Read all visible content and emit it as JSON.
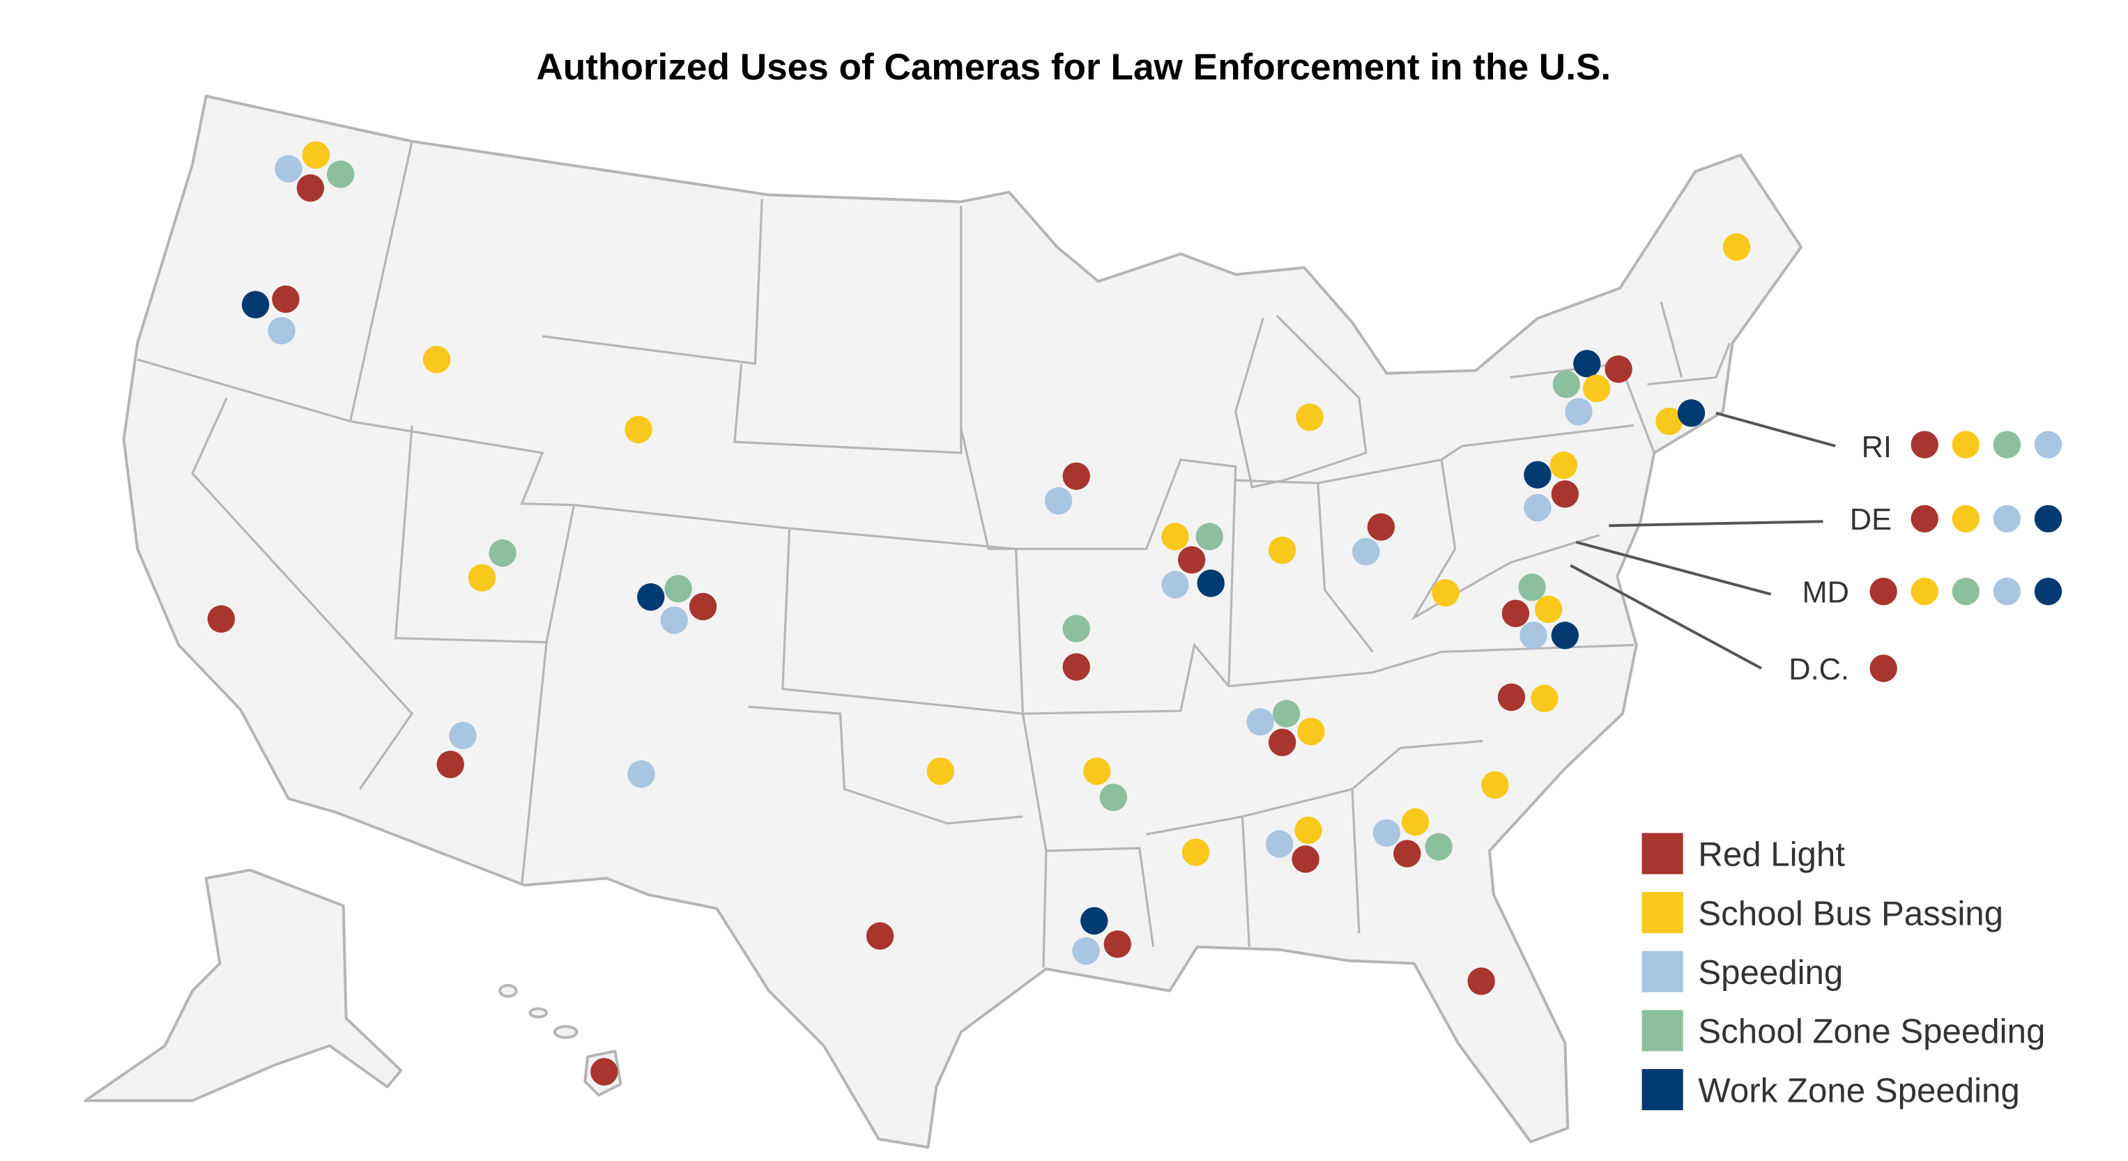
{
  "title": "Authorized Uses of Cameras for Law Enforcement in the U.S.",
  "categories": [
    {
      "key": "red",
      "label": "Red Light",
      "color": "#a8352e"
    },
    {
      "key": "bus",
      "label": "School Bus Passing",
      "color": "#f9c81c"
    },
    {
      "key": "spd",
      "label": "Speeding",
      "color": "#a8c5e2"
    },
    {
      "key": "szs",
      "label": "School Zone Speeding",
      "color": "#8cbf9e"
    },
    {
      "key": "wzs",
      "label": "Work Zone Speeding",
      "color": "#003a70"
    }
  ],
  "legend_position": "bottom-right",
  "states": [
    {
      "state": "WA",
      "uses": [
        "spd",
        "bus",
        "szs",
        "red"
      ]
    },
    {
      "state": "OR",
      "uses": [
        "wzs",
        "red",
        "spd"
      ]
    },
    {
      "state": "ID",
      "uses": [
        "bus"
      ]
    },
    {
      "state": "WY",
      "uses": [
        "bus"
      ]
    },
    {
      "state": "CA",
      "uses": [
        "red"
      ]
    },
    {
      "state": "UT",
      "uses": [
        "szs",
        "bus"
      ]
    },
    {
      "state": "CO",
      "uses": [
        "wzs",
        "szs",
        "red",
        "spd"
      ]
    },
    {
      "state": "AZ",
      "uses": [
        "spd",
        "red"
      ]
    },
    {
      "state": "NM",
      "uses": [
        "spd"
      ]
    },
    {
      "state": "TX",
      "uses": [
        "red"
      ]
    },
    {
      "state": "OK",
      "uses": [
        "bus"
      ]
    },
    {
      "state": "IA",
      "uses": [
        "red",
        "spd"
      ]
    },
    {
      "state": "MO",
      "uses": [
        "szs",
        "red"
      ]
    },
    {
      "state": "AR",
      "uses": [
        "bus",
        "szs"
      ]
    },
    {
      "state": "LA",
      "uses": [
        "wzs",
        "spd",
        "red"
      ]
    },
    {
      "state": "IL",
      "uses": [
        "bus",
        "szs",
        "red",
        "spd",
        "wzs"
      ]
    },
    {
      "state": "MI",
      "uses": [
        "bus"
      ]
    },
    {
      "state": "IN",
      "uses": [
        "bus"
      ]
    },
    {
      "state": "OH",
      "uses": [
        "red",
        "spd"
      ]
    },
    {
      "state": "WV",
      "uses": [
        "bus"
      ]
    },
    {
      "state": "VA",
      "uses": [
        "szs",
        "red",
        "bus",
        "spd",
        "wzs"
      ]
    },
    {
      "state": "TN",
      "uses": [
        "spd",
        "szs",
        "bus",
        "red"
      ]
    },
    {
      "state": "MS",
      "uses": [
        "bus"
      ]
    },
    {
      "state": "AL",
      "uses": [
        "spd",
        "bus",
        "red"
      ]
    },
    {
      "state": "GA",
      "uses": [
        "spd",
        "bus",
        "red",
        "szs"
      ]
    },
    {
      "state": "SC",
      "uses": [
        "bus"
      ]
    },
    {
      "state": "NC",
      "uses": [
        "red",
        "bus"
      ]
    },
    {
      "state": "FL",
      "uses": [
        "red"
      ]
    },
    {
      "state": "PA",
      "uses": [
        "bus",
        "wzs",
        "red",
        "spd"
      ]
    },
    {
      "state": "NY",
      "uses": [
        "szs",
        "wzs",
        "red",
        "bus",
        "spd"
      ]
    },
    {
      "state": "ME",
      "uses": [
        "bus"
      ]
    },
    {
      "state": "CT",
      "uses": [
        "bus"
      ]
    },
    {
      "state": "MA",
      "uses": [
        "wzs"
      ]
    },
    {
      "state": "HI",
      "uses": [
        "red"
      ]
    }
  ],
  "callouts": [
    {
      "label": "RI",
      "uses": [
        "red",
        "bus",
        "szs",
        "spd"
      ]
    },
    {
      "label": "DE",
      "uses": [
        "red",
        "bus",
        "spd",
        "wzs"
      ]
    },
    {
      "label": "MD",
      "uses": [
        "red",
        "bus",
        "szs",
        "spd",
        "wzs"
      ]
    },
    {
      "label": "D.C.",
      "uses": [
        "red"
      ]
    }
  ]
}
